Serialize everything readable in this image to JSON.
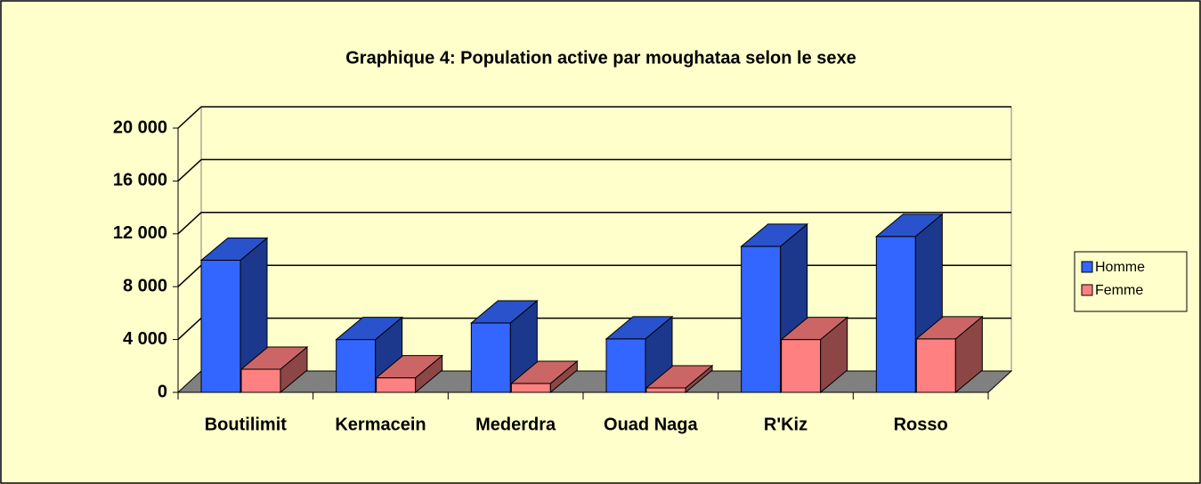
{
  "chart_data": {
    "type": "bar3d",
    "title": "Graphique 4: Population active par moughataa selon le sexe",
    "categories": [
      "Boutilimit",
      "Kermacein",
      "Mederdra",
      "Ouad Naga",
      "R'Kiz",
      "Rosso"
    ],
    "series": [
      {
        "name": "Homme",
        "color": "#3366ff",
        "values": [
          10000,
          4000,
          5250,
          4050,
          11050,
          11800
        ]
      },
      {
        "name": "Femme",
        "color": "#ff8080",
        "values": [
          1750,
          1100,
          670,
          340,
          4000,
          4050
        ]
      }
    ],
    "ylim": [
      0,
      20000
    ],
    "yticks": [
      0,
      {
        "value": 4000,
        "label": "4 000"
      },
      {
        "value": 8000,
        "label": "8 000"
      },
      {
        "value": 12000,
        "label": "12 000"
      },
      {
        "value": 16000,
        "label": "16 000"
      },
      {
        "value": 20000,
        "label": "20 000"
      }
    ],
    "grid": true,
    "legend": "right"
  }
}
